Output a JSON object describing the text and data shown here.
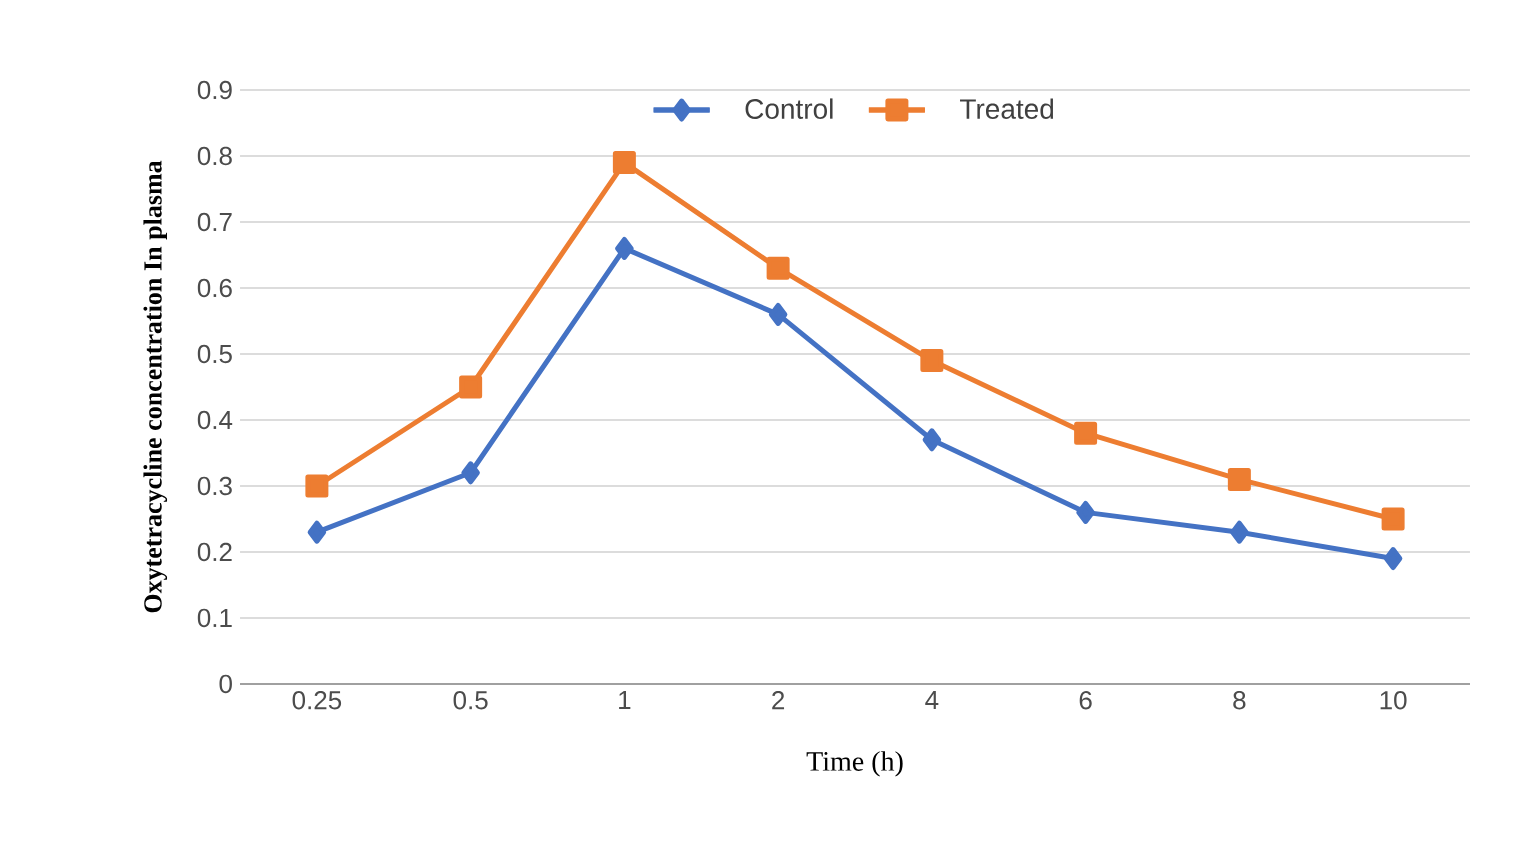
{
  "chart_data": {
    "type": "line",
    "xlabel": "Time (h)",
    "ylabel": "Oxytetracycline concentration In plasma",
    "categories": [
      "0.25",
      "0.5",
      "1",
      "2",
      "4",
      "6",
      "8",
      "10"
    ],
    "series": [
      {
        "name": "Control",
        "color": "#4472c4",
        "marker": "diamond",
        "values": [
          0.23,
          0.32,
          0.66,
          0.56,
          0.37,
          0.26,
          0.23,
          0.19
        ]
      },
      {
        "name": "Treated",
        "color": "#ed7d31",
        "marker": "square",
        "values": [
          0.3,
          0.45,
          0.79,
          0.63,
          0.49,
          0.38,
          0.31,
          0.25
        ]
      }
    ],
    "ylim": [
      0,
      0.9
    ],
    "yticks": [
      0,
      0.1,
      0.2,
      0.3,
      0.4,
      0.5,
      0.6,
      0.7,
      0.8,
      0.9
    ],
    "grid": "y",
    "legend": "top",
    "line_style": "solid"
  }
}
